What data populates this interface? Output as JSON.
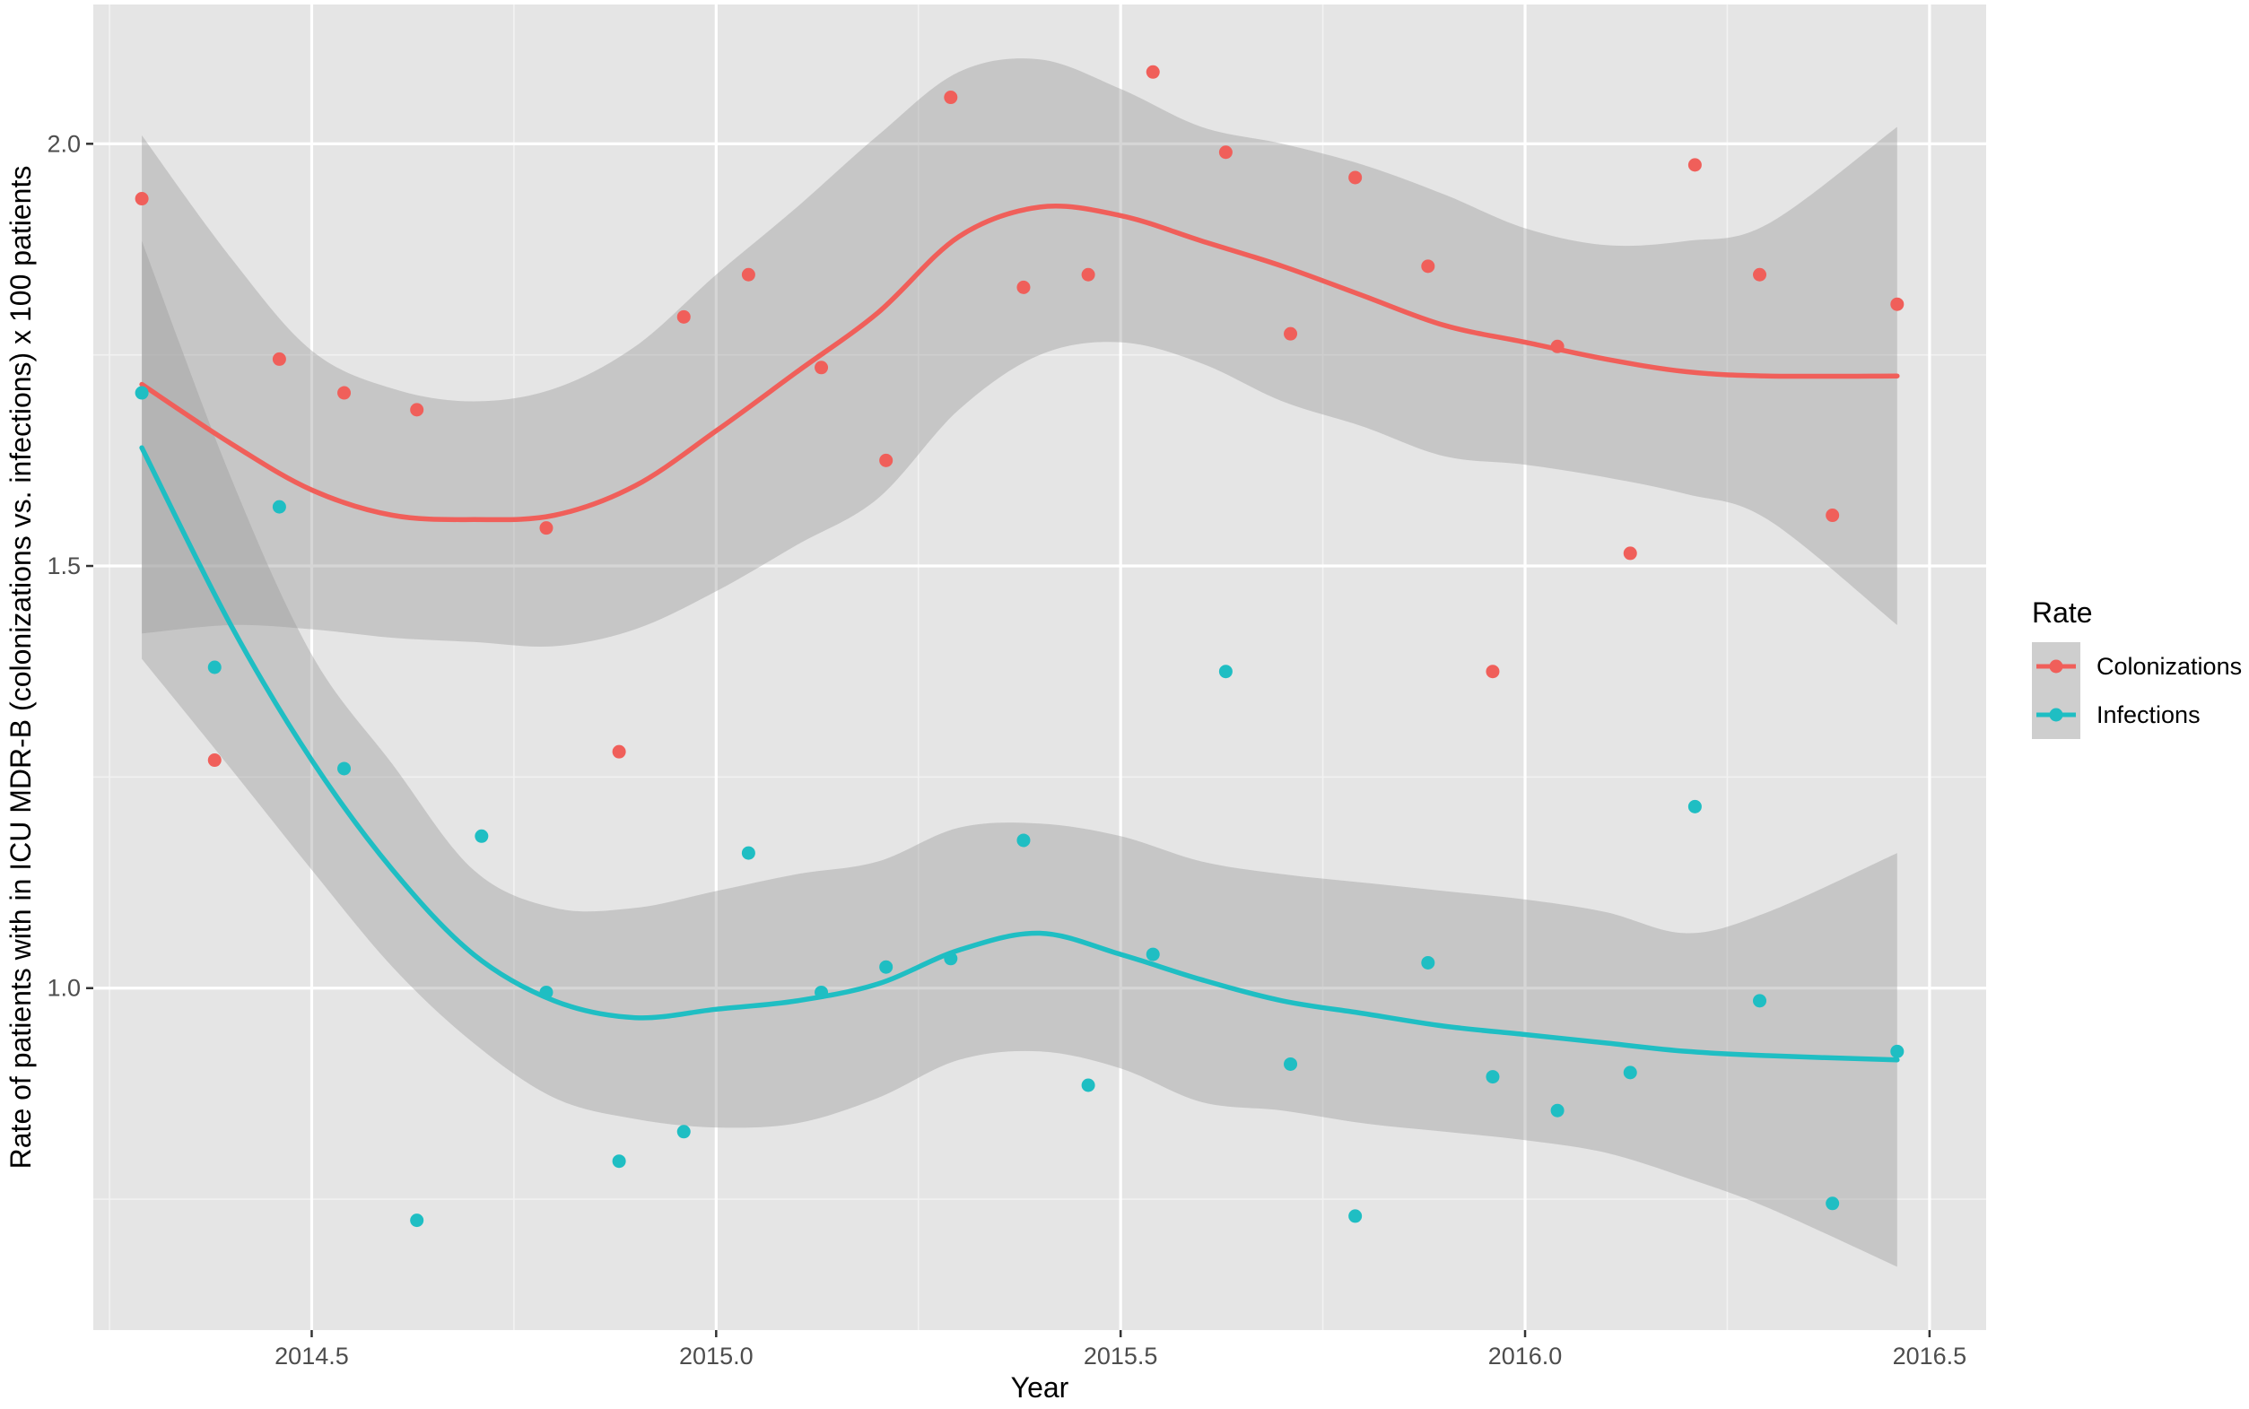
{
  "chart_data": {
    "type": "scatter",
    "xlabel": "Year",
    "ylabel": "Rate of patients with in ICU MDR-B (colonizations vs. infections) x 100 patients",
    "xlim": [
      2014.23,
      2016.57
    ],
    "ylim": [
      0.595,
      2.165
    ],
    "x_ticks": [
      {
        "value": 2014.5,
        "label": "2014.5"
      },
      {
        "value": 2015.0,
        "label": "2015.0"
      },
      {
        "value": 2015.5,
        "label": "2015.5"
      },
      {
        "value": 2016.0,
        "label": "2016.0"
      },
      {
        "value": 2016.5,
        "label": "2016.5"
      }
    ],
    "y_ticks": [
      {
        "value": 1.0,
        "label": "1.0"
      },
      {
        "value": 1.5,
        "label": "1.5"
      },
      {
        "value": 2.0,
        "label": "2.0"
      }
    ],
    "panel_background": "#e5e5e5",
    "grid": true,
    "legend": {
      "title": "Rate",
      "position": "right",
      "entries": [
        "Colonizations",
        "Infections"
      ]
    },
    "series": [
      {
        "name": "Colonizations",
        "color": "#f05f5a",
        "points": [
          {
            "x": 2014.29,
            "y": 1.935
          },
          {
            "x": 2014.38,
            "y": 1.27
          },
          {
            "x": 2014.46,
            "y": 1.745
          },
          {
            "x": 2014.54,
            "y": 1.705
          },
          {
            "x": 2014.63,
            "y": 1.685
          },
          {
            "x": 2014.79,
            "y": 1.545
          },
          {
            "x": 2014.88,
            "y": 1.28
          },
          {
            "x": 2014.96,
            "y": 1.795
          },
          {
            "x": 2015.04,
            "y": 1.845
          },
          {
            "x": 2015.13,
            "y": 1.735
          },
          {
            "x": 2015.21,
            "y": 1.625
          },
          {
            "x": 2015.29,
            "y": 2.055
          },
          {
            "x": 2015.38,
            "y": 1.83
          },
          {
            "x": 2015.46,
            "y": 1.845
          },
          {
            "x": 2015.54,
            "y": 2.085
          },
          {
            "x": 2015.63,
            "y": 1.99
          },
          {
            "x": 2015.71,
            "y": 1.775
          },
          {
            "x": 2015.79,
            "y": 1.96
          },
          {
            "x": 2015.88,
            "y": 1.855
          },
          {
            "x": 2015.96,
            "y": 1.375
          },
          {
            "x": 2016.04,
            "y": 1.76
          },
          {
            "x": 2016.13,
            "y": 1.515
          },
          {
            "x": 2016.21,
            "y": 1.975
          },
          {
            "x": 2016.29,
            "y": 1.845
          },
          {
            "x": 2016.38,
            "y": 1.56
          },
          {
            "x": 2016.46,
            "y": 1.81
          }
        ],
        "smooth": {
          "x": [
            2014.29,
            2014.4,
            2014.5,
            2014.6,
            2014.7,
            2014.8,
            2014.9,
            2015.0,
            2015.1,
            2015.2,
            2015.3,
            2015.4,
            2015.5,
            2015.6,
            2015.7,
            2015.8,
            2015.9,
            2016.0,
            2016.1,
            2016.2,
            2016.3,
            2016.46
          ],
          "y": [
            1.715,
            1.645,
            1.59,
            1.56,
            1.555,
            1.56,
            1.595,
            1.66,
            1.73,
            1.8,
            1.89,
            1.925,
            1.915,
            1.885,
            1.855,
            1.82,
            1.785,
            1.765,
            1.745,
            1.73,
            1.725,
            1.725
          ],
          "lower": [
            1.42,
            1.43,
            1.425,
            1.415,
            1.41,
            1.405,
            1.425,
            1.47,
            1.525,
            1.58,
            1.685,
            1.75,
            1.765,
            1.74,
            1.695,
            1.665,
            1.63,
            1.62,
            1.605,
            1.585,
            1.555,
            1.43
          ],
          "upper": [
            2.01,
            1.865,
            1.755,
            1.71,
            1.695,
            1.71,
            1.76,
            1.845,
            1.925,
            2.01,
            2.085,
            2.1,
            2.065,
            2.02,
            2.0,
            1.975,
            1.94,
            1.9,
            1.88,
            1.885,
            1.905,
            2.02
          ]
        }
      },
      {
        "name": "Infections",
        "color": "#1fbec3",
        "points": [
          {
            "x": 2014.29,
            "y": 1.705
          },
          {
            "x": 2014.38,
            "y": 1.38
          },
          {
            "x": 2014.46,
            "y": 1.57
          },
          {
            "x": 2014.54,
            "y": 1.26
          },
          {
            "x": 2014.63,
            "y": 0.725
          },
          {
            "x": 2014.71,
            "y": 1.18
          },
          {
            "x": 2014.79,
            "y": 0.995
          },
          {
            "x": 2014.88,
            "y": 0.795
          },
          {
            "x": 2014.96,
            "y": 0.83
          },
          {
            "x": 2015.04,
            "y": 1.16
          },
          {
            "x": 2015.13,
            "y": 0.995
          },
          {
            "x": 2015.21,
            "y": 1.025
          },
          {
            "x": 2015.29,
            "y": 1.035
          },
          {
            "x": 2015.38,
            "y": 1.175
          },
          {
            "x": 2015.46,
            "y": 0.885
          },
          {
            "x": 2015.54,
            "y": 1.04
          },
          {
            "x": 2015.63,
            "y": 1.375
          },
          {
            "x": 2015.71,
            "y": 0.91
          },
          {
            "x": 2015.79,
            "y": 0.73
          },
          {
            "x": 2015.88,
            "y": 1.03
          },
          {
            "x": 2015.96,
            "y": 0.895
          },
          {
            "x": 2016.04,
            "y": 0.855
          },
          {
            "x": 2016.13,
            "y": 0.9
          },
          {
            "x": 2016.21,
            "y": 1.215
          },
          {
            "x": 2016.29,
            "y": 0.985
          },
          {
            "x": 2016.38,
            "y": 0.745
          },
          {
            "x": 2016.46,
            "y": 0.925
          }
        ],
        "smooth": {
          "x": [
            2014.29,
            2014.4,
            2014.5,
            2014.6,
            2014.7,
            2014.8,
            2014.9,
            2015.0,
            2015.1,
            2015.2,
            2015.3,
            2015.4,
            2015.5,
            2015.6,
            2015.7,
            2015.8,
            2015.9,
            2016.0,
            2016.1,
            2016.2,
            2016.3,
            2016.46
          ],
          "y": [
            1.64,
            1.43,
            1.27,
            1.14,
            1.04,
            0.985,
            0.965,
            0.975,
            0.985,
            1.005,
            1.045,
            1.065,
            1.04,
            1.01,
            0.985,
            0.97,
            0.955,
            0.945,
            0.935,
            0.925,
            0.92,
            0.915
          ],
          "lower": [
            1.39,
            1.26,
            1.14,
            1.025,
            0.935,
            0.87,
            0.845,
            0.835,
            0.84,
            0.87,
            0.915,
            0.925,
            0.905,
            0.865,
            0.855,
            0.84,
            0.83,
            0.82,
            0.805,
            0.775,
            0.74,
            0.67
          ],
          "upper": [
            1.885,
            1.605,
            1.395,
            1.265,
            1.14,
            1.095,
            1.095,
            1.115,
            1.135,
            1.15,
            1.19,
            1.195,
            1.18,
            1.15,
            1.135,
            1.125,
            1.115,
            1.105,
            1.09,
            1.065,
            1.09,
            1.16
          ]
        }
      }
    ]
  }
}
